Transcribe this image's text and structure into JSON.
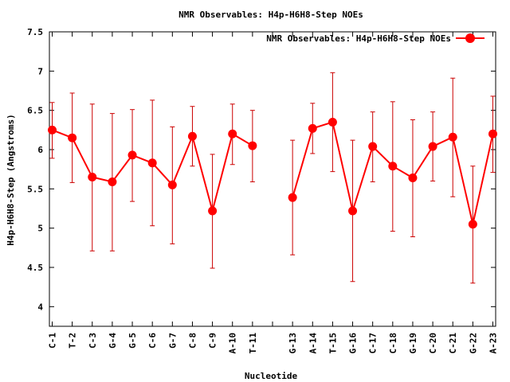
{
  "chart_data": {
    "type": "line",
    "title": "NMR Observables: H4p-H6H8-Step NOEs",
    "xlabel": "Nucleotide",
    "ylabel": "H4p-H6H8-Step (Angstroms)",
    "ylim": [
      3.75,
      7.5
    ],
    "yticks": [
      "4",
      "4.5",
      "5",
      "5.5",
      "6",
      "6.5",
      "7",
      "7.5"
    ],
    "categories": [
      "C-1",
      "T-2",
      "C-3",
      "G-4",
      "G-5",
      "C-6",
      "G-7",
      "C-8",
      "C-9",
      "A-10",
      "T-11",
      "",
      "G-13",
      "A-14",
      "T-15",
      "G-16",
      "C-17",
      "C-18",
      "G-19",
      "C-20",
      "C-21",
      "G-22",
      "A-23"
    ],
    "grid": false,
    "legend_position": "top-right",
    "series": [
      {
        "name": "NMR Observables: H4p-H6H8-Step NOEs",
        "color": "#ff0000",
        "errcolor": "#cc0000",
        "values": [
          6.25,
          6.15,
          5.65,
          5.59,
          5.93,
          5.83,
          5.55,
          6.17,
          5.22,
          6.2,
          6.05,
          null,
          5.39,
          6.27,
          6.35,
          5.22,
          6.04,
          5.79,
          5.64,
          6.04,
          6.16,
          5.05,
          6.2
        ],
        "err_low": [
          5.89,
          5.58,
          4.71,
          4.71,
          5.34,
          5.03,
          4.8,
          5.79,
          4.49,
          5.81,
          5.59,
          null,
          4.66,
          5.95,
          5.72,
          4.32,
          5.59,
          4.96,
          4.89,
          5.6,
          5.4,
          4.3,
          5.71
        ],
        "err_high": [
          6.6,
          6.72,
          6.58,
          6.46,
          6.51,
          6.63,
          6.29,
          6.55,
          5.94,
          6.58,
          6.5,
          null,
          6.12,
          6.59,
          6.98,
          6.12,
          6.48,
          6.61,
          6.38,
          6.48,
          6.91,
          5.79,
          6.68
        ]
      }
    ]
  }
}
